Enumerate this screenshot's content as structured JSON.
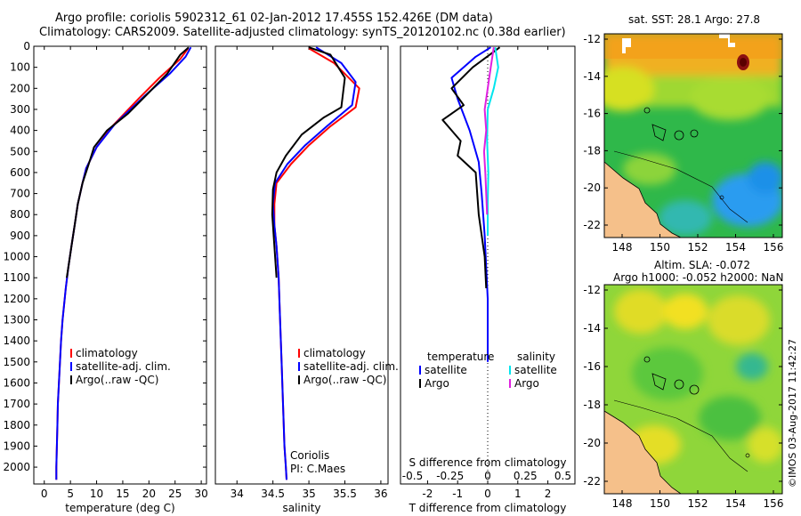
{
  "header": {
    "title_line1": "Argo profile: coriolis 5902312_61 02-Jan-2012 17.455S 152.426E (DM data)",
    "title_line2": "Climatology: CARS2009. Satellite-adjusted climatology: synTS_20120102.nc (0.38d earlier)"
  },
  "colors": {
    "climatology": "#ff0000",
    "satellite": "#0000ff",
    "argo": "#000000",
    "sat_salinity": "#00e5ee",
    "argo_salinity": "#e020e0"
  },
  "chart_data": [
    {
      "type": "line",
      "title": "",
      "xlabel": "temperature (deg C)",
      "ylabel": "",
      "xlim": [
        -2,
        31
      ],
      "ylim": [
        2080,
        0
      ],
      "xticks": [
        0,
        5,
        10,
        15,
        20,
        25,
        30
      ],
      "yticks": [
        0,
        100,
        200,
        300,
        400,
        500,
        600,
        700,
        800,
        900,
        1000,
        1100,
        1200,
        1300,
        1400,
        1500,
        1600,
        1700,
        1800,
        1900,
        2000
      ],
      "legend": [
        "climatology",
        "satellite-adj. clim.",
        "Argo(..raw -QC)"
      ],
      "legend_position": "lower-left",
      "series": [
        {
          "name": "climatology",
          "color": "#ff0000",
          "x": [
            27.5,
            26,
            22,
            18,
            13,
            10,
            8,
            7.3,
            6.4,
            5.8,
            5.2,
            4.6,
            4.1,
            3.5,
            3.2,
            3,
            2.8,
            2.6,
            2.5,
            2.4,
            2.3,
            2.3
          ],
          "y": [
            10,
            60,
            150,
            250,
            380,
            480,
            580,
            650,
            750,
            850,
            950,
            1050,
            1150,
            1300,
            1400,
            1500,
            1600,
            1700,
            1800,
            1900,
            2000,
            2060
          ]
        },
        {
          "name": "satellite-adj. clim.",
          "color": "#0000ff",
          "x": [
            28,
            27,
            24,
            19,
            13.5,
            10,
            8,
            7.3,
            6.4,
            5.8,
            5.2,
            4.6,
            4.1,
            3.5,
            3.2,
            3,
            2.8,
            2.6,
            2.5,
            2.4,
            2.3,
            2.3
          ],
          "y": [
            5,
            50,
            130,
            240,
            370,
            480,
            580,
            650,
            750,
            850,
            950,
            1050,
            1150,
            1300,
            1400,
            1500,
            1600,
            1700,
            1800,
            1900,
            2000,
            2060
          ]
        },
        {
          "name": "Argo(..raw -QC)",
          "color": "#000000",
          "x": [
            27.6,
            26,
            23.5,
            20,
            16,
            12,
            9.5,
            8.5,
            7.3,
            6.4,
            5.8,
            5.2,
            4.6,
            4.3
          ],
          "y": [
            5,
            40,
            130,
            220,
            320,
            400,
            480,
            560,
            650,
            750,
            850,
            950,
            1050,
            1100
          ]
        }
      ]
    },
    {
      "type": "line",
      "xlabel": "salinity",
      "xlim": [
        33.7,
        36.1
      ],
      "ylim": [
        2080,
        0
      ],
      "xticks": [
        34,
        34.5,
        35,
        35.5,
        36
      ],
      "legend": [
        "climatology",
        "satellite-adj. clim.",
        "Argo(..raw -QC)"
      ],
      "legend_position": "lower-left",
      "annotation": [
        "Coriolis",
        "PI: C.Maes"
      ],
      "series": [
        {
          "name": "climatology",
          "color": "#ff0000",
          "x": [
            35.0,
            35.35,
            35.7,
            35.65,
            35.3,
            35.0,
            34.75,
            34.55,
            34.52,
            34.52,
            34.55,
            34.58,
            34.6,
            34.62,
            34.64,
            34.66,
            34.68,
            34.69
          ],
          "y": [
            10,
            80,
            200,
            290,
            380,
            470,
            560,
            650,
            750,
            850,
            950,
            1100,
            1300,
            1500,
            1700,
            1900,
            2000,
            2060
          ]
        },
        {
          "name": "satellite-adj. clim.",
          "color": "#0000ff",
          "x": [
            35.1,
            35.45,
            35.65,
            35.6,
            35.25,
            34.95,
            34.7,
            34.53,
            34.5,
            34.52,
            34.55,
            34.58,
            34.6,
            34.62,
            34.64,
            34.66,
            34.68,
            34.69
          ],
          "y": [
            5,
            80,
            170,
            280,
            380,
            470,
            560,
            650,
            750,
            850,
            950,
            1100,
            1300,
            1500,
            1700,
            1900,
            2000,
            2060
          ]
        },
        {
          "name": "Argo(..raw -QC)",
          "color": "#000000",
          "x": [
            35.0,
            35.3,
            35.5,
            35.45,
            35.2,
            34.9,
            34.68,
            34.55,
            34.5,
            34.49,
            34.52,
            34.55
          ],
          "y": [
            5,
            40,
            150,
            290,
            340,
            420,
            520,
            600,
            680,
            800,
            950,
            1100
          ]
        }
      ]
    },
    {
      "type": "line",
      "xlabel": "T difference from climatology",
      "xlabel_top": "S difference from climatology",
      "xlim": [
        -2.9,
        2.9
      ],
      "ylim": [
        2080,
        0
      ],
      "xticks": [
        -2,
        -1,
        0,
        1,
        2
      ],
      "xticks_top": [
        -0.5,
        -0.25,
        0,
        0.25,
        0.5
      ],
      "legend": [
        "temperature",
        "satellite",
        "Argo",
        "salinity",
        "satellite",
        "Argo"
      ],
      "legend_position": "lower-center",
      "series": [
        {
          "name": "temperature satellite",
          "color": "#0000ff",
          "x": [
            0.1,
            -0.4,
            -1.2,
            -1.0,
            -0.6,
            -0.3,
            -0.2,
            -0.1,
            0,
            0
          ],
          "y": [
            5,
            50,
            150,
            250,
            400,
            550,
            700,
            900,
            1200,
            1500
          ]
        },
        {
          "name": "temperature Argo",
          "color": "#000000",
          "x": [
            0.4,
            -0.5,
            -1.2,
            -0.8,
            -1.5,
            -0.9,
            -1.0,
            -0.4,
            -0.3,
            -0.1,
            -0.05
          ],
          "y": [
            5,
            100,
            200,
            280,
            350,
            450,
            520,
            600,
            800,
            1000,
            1150
          ]
        },
        {
          "name": "salinity satellite",
          "color": "#00e5ee",
          "x": [
            0.25,
            0.35,
            0.2,
            0,
            -0.02,
            0.02,
            0,
            0
          ],
          "y": [
            5,
            100,
            200,
            300,
            450,
            600,
            750,
            900
          ]
        },
        {
          "name": "salinity Argo",
          "color": "#e020e0",
          "x": [
            0.2,
            0.1,
            0,
            -0.1,
            -0.05,
            -0.12,
            -0.08,
            -0.05,
            -0.02
          ],
          "y": [
            5,
            100,
            200,
            300,
            400,
            500,
            600,
            700,
            800
          ]
        }
      ]
    }
  ],
  "map_sst": {
    "title": "sat. SST: 28.1  Argo: 27.8",
    "xticks": [
      "148",
      "150",
      "152",
      "154",
      "156"
    ],
    "yticks": [
      "-12",
      "-14",
      "-16",
      "-18",
      "-20",
      "-22"
    ]
  },
  "map_sla": {
    "title1": "Altim. SLA: -0.072",
    "title2": "Argo h1000: -0.052  h2000: NaN",
    "xticks": [
      "148",
      "150",
      "152",
      "154",
      "156"
    ],
    "yticks": [
      "-12",
      "-14",
      "-16",
      "-18",
      "-20",
      "-22"
    ]
  },
  "footer": {
    "stamp": "©IMOS 03-Aug-2017 11:42:27"
  }
}
